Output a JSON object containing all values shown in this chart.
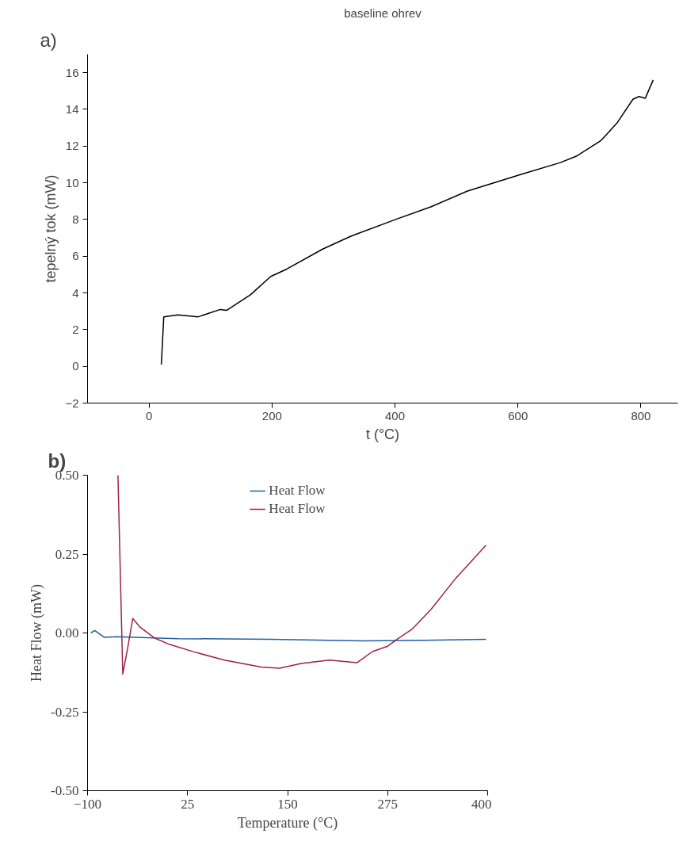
{
  "chart_data": [
    {
      "type": "line",
      "title": "baseline ohrev",
      "xlabel": "t (°C)",
      "ylabel": "tepelný tok (mW)",
      "annotations": [
        "a)"
      ],
      "x": [
        20,
        24,
        47,
        80,
        116,
        126,
        165,
        198,
        224,
        283,
        329,
        401,
        459,
        518,
        604,
        669,
        695,
        735,
        761,
        787,
        797,
        807,
        820
      ],
      "series": [
        {
          "color": "#000000",
          "values": [
            0.1,
            2.7,
            2.8,
            2.7,
            3.1,
            3.05,
            3.9,
            4.9,
            5.3,
            6.4,
            7.1,
            8.0,
            8.7,
            9.55,
            10.45,
            11.1,
            11.45,
            12.3,
            13.25,
            14.55,
            14.7,
            14.6,
            15.6
          ]
        }
      ],
      "xlim": [
        -100,
        860
      ],
      "ylim": [
        -2,
        17
      ],
      "xticks": [
        0,
        200,
        400,
        600,
        800
      ],
      "yticks": [
        -2,
        0,
        2,
        4,
        6,
        8,
        10,
        12,
        14,
        16
      ],
      "grid": false,
      "legend": false
    },
    {
      "type": "line",
      "xlabel": "Temperature (°C)",
      "ylabel": "Heat Flow (mW)",
      "annotations": [
        "b)"
      ],
      "series": [
        {
          "name": "Heat Flow",
          "color": "#1f5fa0",
          "x": [
            -96,
            -91,
            -79,
            -63,
            13,
            129,
            244,
            321,
            398
          ],
          "values": [
            0,
            0.008,
            -0.014,
            -0.012,
            -0.018,
            -0.02,
            -0.025,
            -0.023,
            -0.02
          ]
        },
        {
          "name": "Heat Flow",
          "color": "#a0204a",
          "x": [
            -62,
            -56,
            -50,
            -43.5,
            -35,
            -17,
            2,
            33,
            71,
            117,
            140,
            167,
            202,
            237,
            256,
            275,
            287,
            306,
            329,
            360,
            398
          ],
          "values": [
            0.5,
            -0.13,
            -0.05,
            0.046,
            0.02,
            -0.015,
            -0.036,
            -0.06,
            -0.086,
            -0.108,
            -0.112,
            -0.097,
            -0.086,
            -0.094,
            -0.059,
            -0.042,
            -0.02,
            0.013,
            0.074,
            0.173,
            0.278
          ]
        }
      ],
      "xlim": [
        -100,
        400
      ],
      "ylim": [
        -0.5,
        0.5
      ],
      "xticks": [
        -100,
        25,
        150,
        275,
        400
      ],
      "yticks": [
        {
          "value": -0.5,
          "label": "-0.50"
        },
        {
          "value": -0.25,
          "label": "-0.25"
        },
        {
          "value": 0,
          "label": "0.00"
        },
        {
          "value": 0.25,
          "label": "0.25"
        },
        {
          "value": 0.5,
          "label": "0.50"
        }
      ],
      "grid": false,
      "legend": "top"
    }
  ]
}
